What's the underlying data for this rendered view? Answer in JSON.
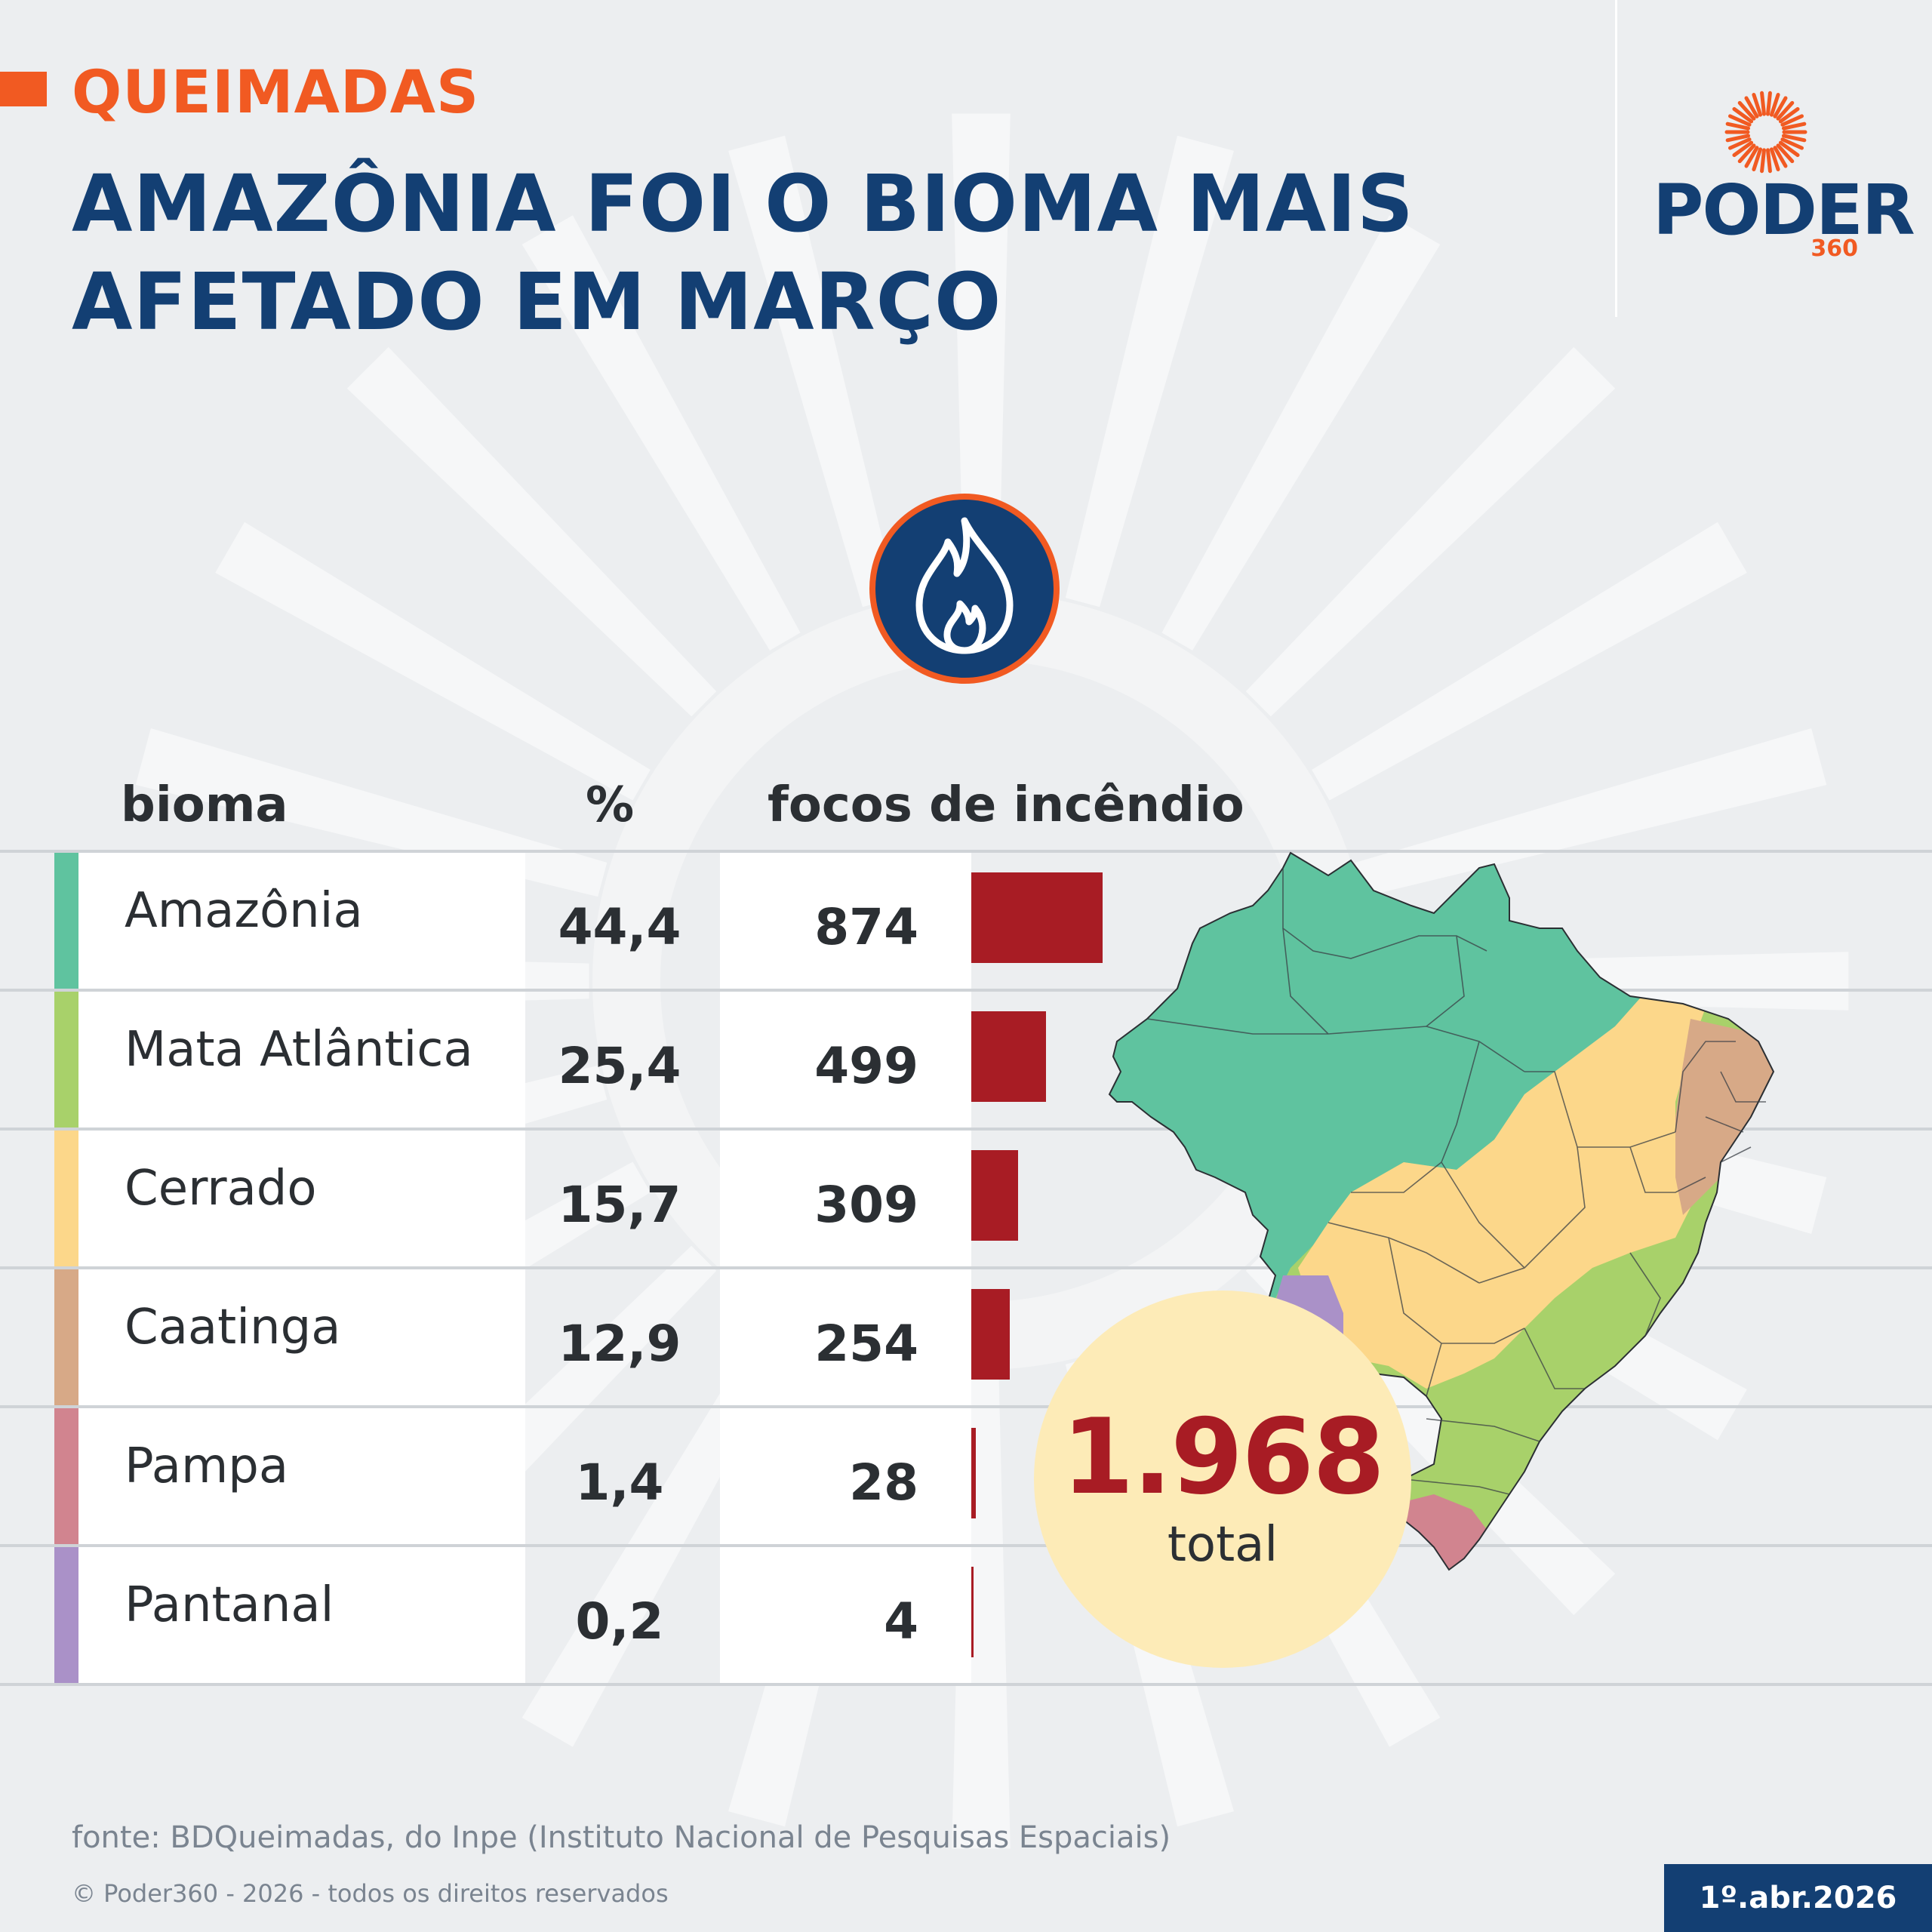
{
  "colors": {
    "orange": "#f15a22",
    "navy": "#133f73",
    "text": "#2b2f33",
    "bar": "#a81c24",
    "total_bg": "#fdebb7",
    "amazonia": "#5fc39f",
    "mata_atlantica": "#a8d16a",
    "cerrado": "#fcd78a",
    "caatinga": "#d7a987",
    "pampa": "#d1848f",
    "pantanal": "#aa91c8",
    "muted": "#7a8490"
  },
  "header": {
    "kicker": "QUEIMADAS",
    "title": "AMAZÔNIA FOI O BIOMA MAIS AFETADO EM MARÇO"
  },
  "logo": {
    "word": "PODER",
    "number": "360",
    "icon": "sun-burst-icon"
  },
  "icon": "flame-icon",
  "table": {
    "headers": {
      "bioma": "bioma",
      "pct": "%",
      "focos": "focos de incêndio"
    }
  },
  "chart_data": {
    "type": "bar",
    "orientation": "horizontal",
    "categories": [
      "Amazônia",
      "Mata Atlântica",
      "Cerrado",
      "Caatinga",
      "Pampa",
      "Pantanal"
    ],
    "percent_labels": [
      "44,4",
      "25,4",
      "15,7",
      "12,9",
      "1,4",
      "0,2"
    ],
    "value_labels": [
      "874",
      "499",
      "309",
      "254",
      "28",
      "4"
    ],
    "values": [
      874,
      499,
      309,
      254,
      28,
      4
    ],
    "xlim": [
      0,
      874
    ],
    "grid": false,
    "legend": "none"
  },
  "total": {
    "value": "1.968",
    "label": "total"
  },
  "footer": {
    "source": "fonte: BDQueimadas, do Inpe (Instituto Nacional de Pesquisas Espaciais)",
    "copyright": "© Poder360 - 2026 - todos os direitos reservados",
    "date": "1º.abr.2026"
  }
}
